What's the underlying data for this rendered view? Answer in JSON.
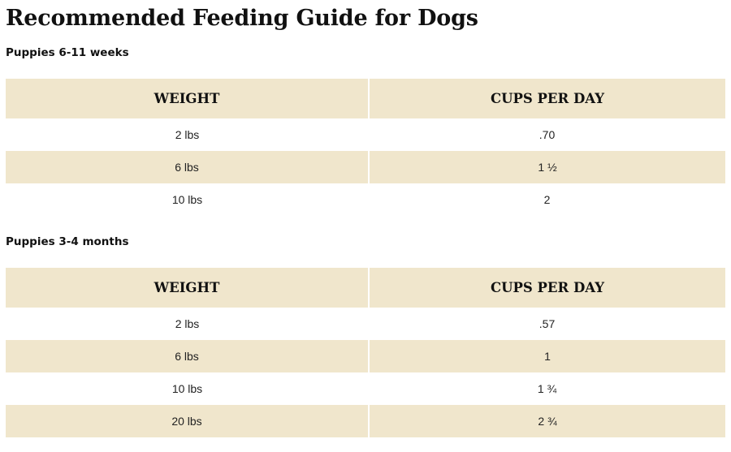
{
  "page": {
    "title": "Recommended Feeding Guide for Dogs"
  },
  "sections": [
    {
      "heading": "Puppies 6-11 weeks",
      "columns": [
        "WEIGHT",
        "CUPS PER DAY"
      ],
      "rows": [
        {
          "weight": "2 lbs",
          "cups": ".70"
        },
        {
          "weight": "6 lbs",
          "cups": "1 ½"
        },
        {
          "weight": "10 lbs",
          "cups": "2"
        }
      ]
    },
    {
      "heading": "Puppies 3-4 months",
      "columns": [
        "WEIGHT",
        "CUPS PER DAY"
      ],
      "rows": [
        {
          "weight": "2 lbs",
          "cups": ".57"
        },
        {
          "weight": "6 lbs",
          "cups": "1"
        },
        {
          "weight": "10 lbs",
          "cups": "1 ¾"
        },
        {
          "weight": "20 lbs",
          "cups": "2 ¾"
        }
      ]
    }
  ],
  "colors": {
    "header_bg": "#f0e6cc",
    "alt_row_bg": "#f0e6cc",
    "text": "#111111"
  }
}
